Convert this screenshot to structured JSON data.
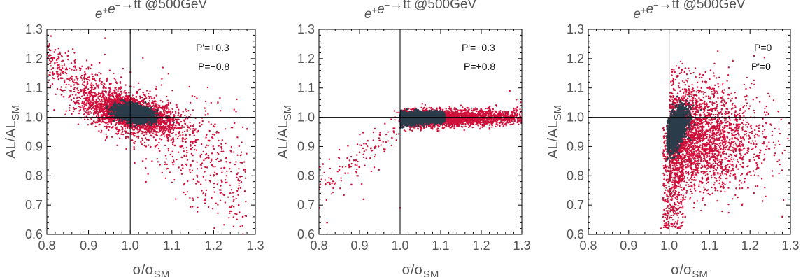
{
  "colors": {
    "red": "#d0103a",
    "dark": "#2b3c4b",
    "frame": "#000000"
  },
  "chart_data": [
    {
      "type": "scatter",
      "title": {
        "p1": "e",
        "p1sup": "+",
        "p2": "e",
        "p2sup": "−",
        "p3": "→tt @500GeV"
      },
      "xlabel": {
        "main": "σ/σ",
        "sub": "SM"
      },
      "ylabel": {
        "main": "AL/AL",
        "sub": "SM"
      },
      "xlim": [
        0.8,
        1.3
      ],
      "ylim": [
        0.6,
        1.3
      ],
      "xticks": [
        "0.8",
        "0.9",
        "1.0",
        "1.1",
        "1.2",
        "1.3"
      ],
      "yticks": [
        "0.6",
        "0.7",
        "0.8",
        "0.9",
        "1.0",
        "1.1",
        "1.2",
        "1.3"
      ],
      "annotations": [
        "P'=+0.3",
        "P=−0.8"
      ],
      "reference_lines": {
        "x": 1.0,
        "y": 1.0
      },
      "series": [
        {
          "color": "red",
          "shape": "scatter around (1.0, 1.02), spread along anti-diagonal from (0.80, 1.20) to (1.28, 0.65)",
          "points": [
            [
              0.8,
              1.26
            ],
            [
              0.81,
              1.19
            ],
            [
              0.82,
              1.23
            ],
            [
              0.83,
              1.17
            ],
            [
              0.85,
              1.21
            ],
            [
              0.86,
              1.14
            ],
            [
              0.88,
              1.16
            ],
            [
              0.89,
              1.12
            ],
            [
              0.91,
              1.13
            ],
            [
              0.93,
              1.08
            ],
            [
              0.94,
              1.27
            ],
            [
              0.95,
              1.1
            ],
            [
              0.96,
              1.05
            ],
            [
              0.97,
              1.06
            ],
            [
              1.05,
              0.97
            ],
            [
              1.07,
              0.96
            ],
            [
              1.09,
              0.93
            ],
            [
              1.1,
              0.96
            ],
            [
              1.12,
              0.9
            ],
            [
              1.13,
              0.99
            ],
            [
              1.15,
              0.87
            ],
            [
              1.16,
              0.95
            ],
            [
              1.18,
              0.83
            ],
            [
              1.19,
              0.92
            ],
            [
              1.2,
              0.8
            ],
            [
              1.21,
              1.05
            ],
            [
              1.22,
              0.78
            ],
            [
              1.23,
              0.86
            ],
            [
              1.24,
              0.74
            ],
            [
              1.25,
              0.98
            ],
            [
              1.26,
              0.7
            ],
            [
              1.27,
              0.66
            ],
            [
              1.28,
              0.96
            ],
            [
              0.87,
              1.03
            ],
            [
              0.9,
              1.01
            ],
            [
              1.03,
              0.85
            ],
            [
              1.06,
              0.9
            ]
          ]
        },
        {
          "color": "dark",
          "shape": "dense core at (1.01, 1.01)",
          "points": [
            [
              0.97,
              1.02
            ],
            [
              0.98,
              1.01
            ],
            [
              0.99,
              1.03
            ],
            [
              1.0,
              1.0
            ],
            [
              1.01,
              1.02
            ],
            [
              1.02,
              1.0
            ],
            [
              1.03,
              1.01
            ],
            [
              1.04,
              0.99
            ],
            [
              1.05,
              1.0
            ]
          ]
        }
      ]
    },
    {
      "type": "scatter",
      "title": {
        "p1": "e",
        "p1sup": "+",
        "p2": "e",
        "p2sup": "−",
        "p3": "→tt @500GeV"
      },
      "xlabel": {
        "main": "σ/σ",
        "sub": "SM"
      },
      "ylabel": {
        "main": "AL/AL",
        "sub": "SM"
      },
      "xlim": [
        0.8,
        1.3
      ],
      "ylim": [
        0.6,
        1.3
      ],
      "xticks": [
        "0.8",
        "0.9",
        "1.0",
        "1.1",
        "1.2",
        "1.3"
      ],
      "yticks": [
        "0.6",
        "0.7",
        "0.8",
        "0.9",
        "1.0",
        "1.1",
        "1.2",
        "1.3"
      ],
      "annotations": [
        "P'=−0.3",
        "P=+0.8"
      ],
      "reference_lines": {
        "x": 1.0,
        "y": 1.0
      },
      "series": [
        {
          "color": "red",
          "shape": "horizontal band near y=1.0 from x=1.0 to 1.3 plus sparse tail to (0.8, 0.7)",
          "points": [
            [
              0.81,
              0.84
            ],
            [
              0.82,
              0.64
            ],
            [
              0.83,
              0.79
            ],
            [
              0.85,
              0.82
            ],
            [
              0.87,
              0.86
            ],
            [
              0.88,
              0.77
            ],
            [
              0.9,
              0.88
            ],
            [
              0.91,
              0.72
            ],
            [
              0.92,
              0.92
            ],
            [
              0.94,
              0.9
            ],
            [
              0.95,
              0.94
            ],
            [
              0.96,
              0.89
            ],
            [
              0.97,
              0.95
            ],
            [
              0.98,
              0.93
            ],
            [
              1.0,
              0.69
            ],
            [
              1.08,
              0.96
            ],
            [
              1.12,
              0.97
            ],
            [
              1.15,
              1.04
            ],
            [
              1.18,
              0.98
            ],
            [
              1.2,
              1.02
            ],
            [
              1.22,
              0.96
            ],
            [
              1.24,
              1.01
            ],
            [
              1.26,
              0.99
            ],
            [
              1.27,
              1.09
            ],
            [
              1.28,
              1.03
            ],
            [
              1.3,
              0.98
            ]
          ]
        },
        {
          "color": "dark",
          "shape": "elongated core along y≈0.99 from x=1.00 to 1.10",
          "points": [
            [
              1.0,
              1.0
            ],
            [
              1.02,
              0.99
            ],
            [
              1.04,
              1.0
            ],
            [
              1.06,
              0.99
            ],
            [
              1.08,
              1.0
            ],
            [
              1.1,
              1.0
            ]
          ]
        }
      ]
    },
    {
      "type": "scatter",
      "title": {
        "p1": "e",
        "p1sup": "+",
        "p2": "e",
        "p2sup": "−",
        "p3": "→tt @500GeV"
      },
      "xlabel": {
        "main": "σ/σ",
        "sub": "SM"
      },
      "ylabel": {
        "main": "AL/AL",
        "sub": "SM"
      },
      "xlim": [
        0.8,
        1.3
      ],
      "ylim": [
        0.6,
        1.3
      ],
      "xticks": [
        "0.8",
        "0.9",
        "1.0",
        "1.1",
        "1.2",
        "1.3"
      ],
      "yticks": [
        "0.6",
        "0.7",
        "0.8",
        "0.9",
        "1.0",
        "1.1",
        "1.2",
        "1.3"
      ],
      "annotations": [
        "P=0",
        "P'=0"
      ],
      "reference_lines": {
        "x": 1.0,
        "y": 1.0
      },
      "series": [
        {
          "color": "red",
          "shape": "fan from (1.0, 0.95) spreading to the right and downward",
          "points": [
            [
              0.98,
              0.62
            ],
            [
              0.99,
              0.9
            ],
            [
              1.0,
              0.6
            ],
            [
              1.02,
              0.72
            ],
            [
              1.04,
              0.66
            ],
            [
              1.06,
              0.84
            ],
            [
              1.08,
              1.1
            ],
            [
              1.1,
              1.13
            ],
            [
              1.12,
              0.75
            ],
            [
              1.14,
              1.02
            ],
            [
              1.16,
              0.88
            ],
            [
              1.18,
              0.7
            ],
            [
              1.19,
              1.06
            ],
            [
              1.2,
              0.93
            ],
            [
              1.21,
              1.21
            ],
            [
              1.22,
              0.8
            ],
            [
              1.24,
              0.98
            ],
            [
              1.26,
              0.87
            ],
            [
              1.27,
              1.02
            ],
            [
              1.28,
              0.66
            ]
          ]
        },
        {
          "color": "dark",
          "shape": "dense core at (1.02, 0.95) extending to (1.04, 1.04)",
          "points": [
            [
              1.0,
              0.93
            ],
            [
              1.01,
              0.96
            ],
            [
              1.02,
              0.94
            ],
            [
              1.03,
              0.98
            ],
            [
              1.04,
              1.03
            ],
            [
              1.05,
              0.9
            ]
          ]
        }
      ]
    }
  ]
}
